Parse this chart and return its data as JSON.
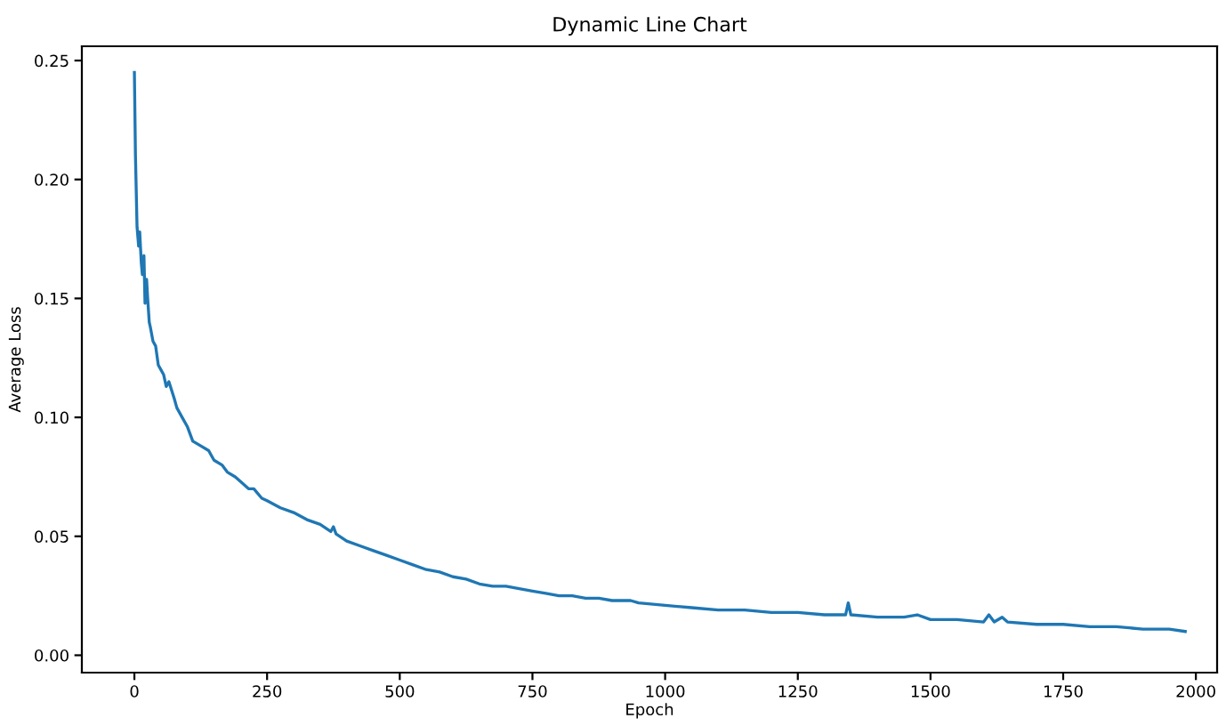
{
  "chart_data": {
    "type": "line",
    "title": "Dynamic Line Chart",
    "xlabel": "Epoch",
    "ylabel": "Average Loss",
    "xlim": [
      -99,
      2040
    ],
    "ylim": [
      -0.0073,
      0.256
    ],
    "xticks": [
      0,
      250,
      500,
      750,
      1000,
      1250,
      1500,
      1750,
      2000
    ],
    "yticks": [
      {
        "value": 0,
        "label": "0.00"
      },
      {
        "value": 0.05,
        "label": "0.05"
      },
      {
        "value": 0.1,
        "label": "0.10"
      },
      {
        "value": 0.15,
        "label": "0.15"
      },
      {
        "value": 0.2,
        "label": "0.20"
      },
      {
        "value": 0.25,
        "label": "0.25"
      }
    ],
    "grid": false,
    "legend": false,
    "series": [
      {
        "color": "#1f77b4",
        "x": [
          0,
          2,
          5,
          8,
          10,
          13,
          15,
          18,
          20,
          23,
          25,
          28,
          30,
          35,
          40,
          45,
          50,
          55,
          60,
          65,
          75,
          80,
          90,
          100,
          110,
          125,
          140,
          150,
          165,
          175,
          190,
          200,
          215,
          225,
          240,
          250,
          275,
          300,
          325,
          350,
          370,
          375,
          380,
          400,
          425,
          450,
          475,
          500,
          525,
          550,
          575,
          600,
          625,
          650,
          675,
          700,
          725,
          750,
          775,
          800,
          825,
          850,
          875,
          900,
          935,
          950,
          1000,
          1050,
          1100,
          1150,
          1200,
          1250,
          1300,
          1340,
          1345,
          1350,
          1400,
          1450,
          1475,
          1500,
          1550,
          1600,
          1610,
          1620,
          1635,
          1645,
          1700,
          1750,
          1800,
          1850,
          1900,
          1950,
          1980
        ],
        "values": [
          0.245,
          0.21,
          0.18,
          0.172,
          0.178,
          0.165,
          0.16,
          0.168,
          0.148,
          0.158,
          0.15,
          0.14,
          0.138,
          0.132,
          0.13,
          0.122,
          0.12,
          0.118,
          0.113,
          0.115,
          0.108,
          0.104,
          0.1,
          0.096,
          0.09,
          0.088,
          0.086,
          0.082,
          0.08,
          0.077,
          0.075,
          0.073,
          0.07,
          0.07,
          0.066,
          0.065,
          0.062,
          0.06,
          0.057,
          0.055,
          0.052,
          0.054,
          0.051,
          0.048,
          0.046,
          0.044,
          0.042,
          0.04,
          0.038,
          0.036,
          0.035,
          0.033,
          0.032,
          0.03,
          0.029,
          0.029,
          0.028,
          0.027,
          0.026,
          0.025,
          0.025,
          0.024,
          0.024,
          0.023,
          0.023,
          0.022,
          0.021,
          0.02,
          0.019,
          0.019,
          0.018,
          0.018,
          0.017,
          0.017,
          0.022,
          0.017,
          0.016,
          0.016,
          0.017,
          0.015,
          0.015,
          0.014,
          0.017,
          0.014,
          0.016,
          0.014,
          0.013,
          0.013,
          0.012,
          0.012,
          0.011,
          0.011,
          0.01
        ]
      }
    ]
  }
}
